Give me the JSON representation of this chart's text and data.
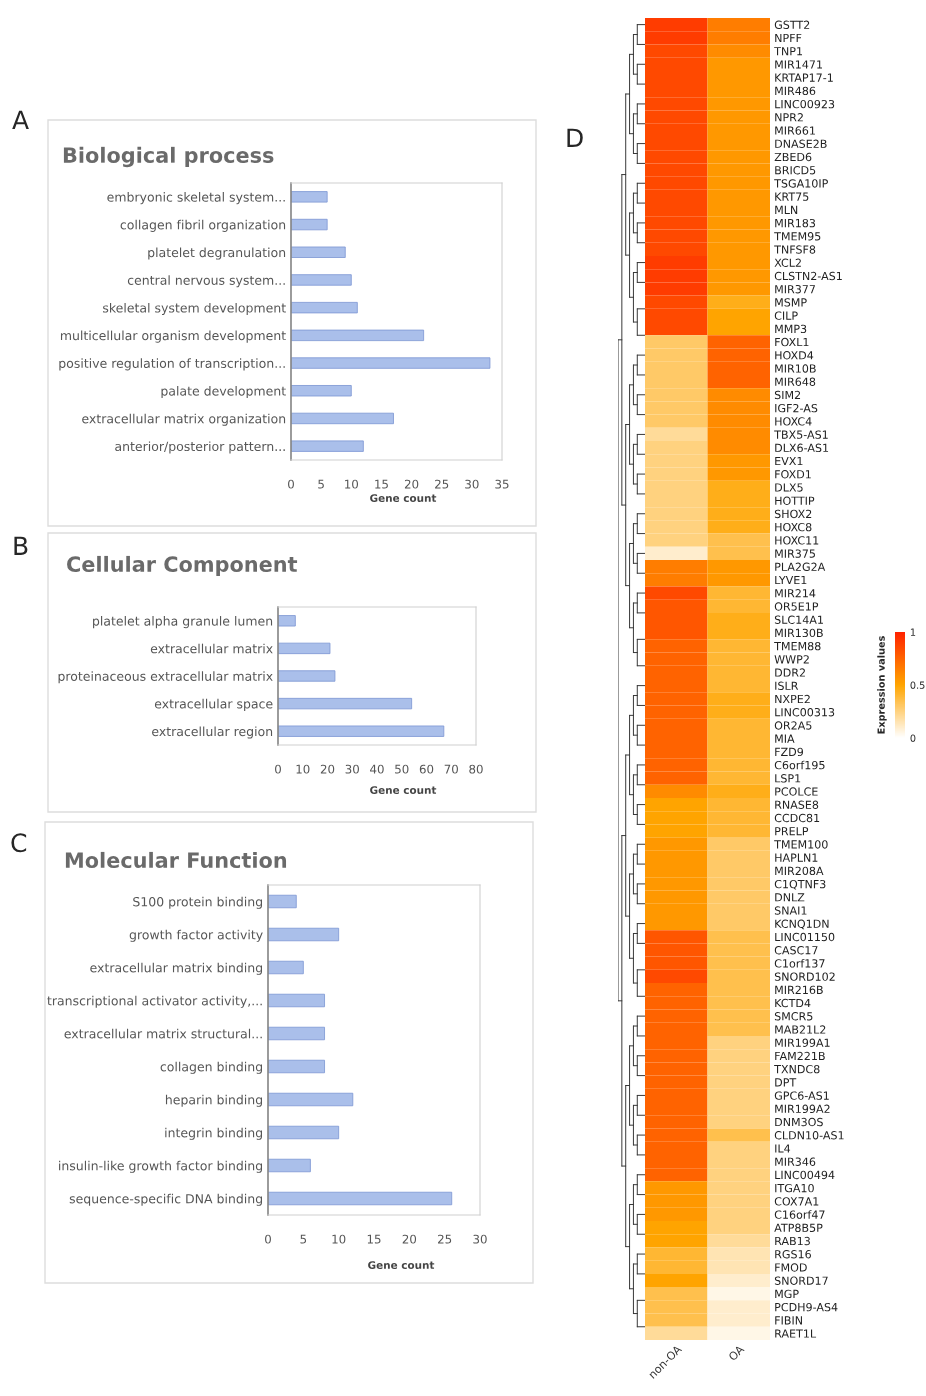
{
  "chart_data": [
    {
      "type": "bar",
      "orientation": "horizontal",
      "title": "Biological process",
      "xlabel": "Gene count",
      "annotations": [
        "A"
      ],
      "color": "#aabfea",
      "categories": [
        "embryonic skeletal system...",
        "collagen fibril organization",
        "platelet degranulation",
        "central nervous system...",
        "skeletal system development",
        "multicellular organism development",
        "positive regulation of transcription...",
        "palate development",
        "extracellular matrix organization",
        "anterior/posterior pattern..."
      ],
      "values": [
        6,
        6,
        9,
        10,
        11,
        22,
        33,
        10,
        17,
        12
      ],
      "xlim": [
        0,
        35
      ],
      "xticks": [
        0,
        5,
        10,
        15,
        20,
        25,
        30,
        35
      ]
    },
    {
      "type": "bar",
      "orientation": "horizontal",
      "title": "Cellular Component",
      "xlabel": "Gene count",
      "annotations": [
        "B"
      ],
      "color": "#aabfea",
      "categories": [
        "platelet alpha granule lumen",
        "extracellular matrix",
        "proteinaceous extracellular matrix",
        "extracellular space",
        "extracellular region"
      ],
      "values": [
        7,
        21,
        23,
        54,
        67
      ],
      "xlim": [
        0,
        80
      ],
      "xticks": [
        0,
        10,
        20,
        30,
        40,
        50,
        60,
        70,
        80
      ]
    },
    {
      "type": "bar",
      "orientation": "horizontal",
      "title": "Molecular Function",
      "xlabel": "Gene count",
      "annotations": [
        "C"
      ],
      "color": "#aabfea",
      "categories": [
        "S100 protein binding",
        "growth factor activity",
        "extracellular matrix binding",
        "transcriptional activator activity,...",
        "extracellular matrix structural...",
        "collagen binding",
        "heparin binding",
        "integrin binding",
        "insulin-like growth factor binding",
        "sequence-specific DNA binding"
      ],
      "values": [
        4,
        10,
        5,
        8,
        8,
        8,
        12,
        10,
        6,
        26
      ],
      "xlim": [
        0,
        30
      ],
      "xticks": [
        0,
        5,
        10,
        15,
        20,
        25,
        30
      ]
    },
    {
      "type": "heatmap",
      "annotations": [
        "D"
      ],
      "clabel": "Expression values",
      "clim": [
        0,
        1
      ],
      "cticks": [
        0,
        0.5,
        1
      ],
      "categories": [
        "non-OA",
        "OA"
      ],
      "y_categories": [
        "GSTT2",
        "NPFF",
        "TNP1",
        "MIR1471",
        "KRTAP17-1",
        "MIR486",
        "LINC00923",
        "NPR2",
        "MIR661",
        "DNASE2B",
        "ZBED6",
        "BRICD5",
        "TSGA10IP",
        "KRT75",
        "MLN",
        "MIR183",
        "TMEM95",
        "TNFSF8",
        "XCL2",
        "CLSTN2-AS1",
        "MIR377",
        "MSMP",
        "CILP",
        "MMP3",
        "FOXL1",
        "HOXD4",
        "MIR10B",
        "MIR648",
        "SIM2",
        "IGF2-AS",
        "HOXC4",
        "TBX5-AS1",
        "DLX6-AS1",
        "EVX1",
        "FOXD1",
        "DLX5",
        "HOTTIP",
        "SHOX2",
        "HOXC8",
        "HOXC11",
        "MIR375",
        "PLA2G2A",
        "LYVE1",
        "MIR214",
        "OR5E1P",
        "SLC14A1",
        "MIR130B",
        "TMEM88",
        "WWP2",
        "DDR2",
        "ISLR",
        "NXPE2",
        "LINC00313",
        "OR2A5",
        "MIA",
        "FZD9",
        "C6orf195",
        "LSP1",
        "PCOLCE",
        "RNASE8",
        "CCDC81",
        "PRELP",
        "TMEM100",
        "HAPLN1",
        "MIR208A",
        "C1QTNF3",
        "DNLZ",
        "SNAI1",
        "KCNQ1DN",
        "LINC01150",
        "CASC17",
        "C1orf137",
        "SNORD102",
        "MIR216B",
        "KCTD4",
        "SMCR5",
        "MAB21L2",
        "MIR199A1",
        "FAM221B",
        "TXNDC8",
        "DPT",
        "GPC6-AS1",
        "MIR199A2",
        "DNM3OS",
        "CLDN10-AS1",
        "IL4",
        "MIR346",
        "LINC00494",
        "ITGA10",
        "COX7A1",
        "C16orf47",
        "ATP8B5P",
        "RAB13",
        "RGS16",
        "FMOD",
        "SNORD17",
        "MGP",
        "PCDH9-AS4",
        "FIBIN",
        "RAET1L"
      ],
      "cells": [
        [
          0.9,
          0.65
        ],
        [
          0.9,
          0.65
        ],
        [
          0.85,
          0.6
        ],
        [
          0.85,
          0.55
        ],
        [
          0.85,
          0.55
        ],
        [
          0.85,
          0.55
        ],
        [
          0.85,
          0.55
        ],
        [
          0.85,
          0.55
        ],
        [
          0.85,
          0.55
        ],
        [
          0.85,
          0.55
        ],
        [
          0.85,
          0.55
        ],
        [
          0.85,
          0.55
        ],
        [
          0.85,
          0.55
        ],
        [
          0.85,
          0.55
        ],
        [
          0.85,
          0.55
        ],
        [
          0.85,
          0.55
        ],
        [
          0.85,
          0.55
        ],
        [
          0.85,
          0.55
        ],
        [
          0.9,
          0.55
        ],
        [
          0.9,
          0.55
        ],
        [
          0.9,
          0.55
        ],
        [
          0.85,
          0.45
        ],
        [
          0.85,
          0.5
        ],
        [
          0.85,
          0.5
        ],
        [
          0.3,
          0.75
        ],
        [
          0.3,
          0.75
        ],
        [
          0.3,
          0.75
        ],
        [
          0.3,
          0.75
        ],
        [
          0.3,
          0.6
        ],
        [
          0.3,
          0.6
        ],
        [
          0.3,
          0.6
        ],
        [
          0.2,
          0.6
        ],
        [
          0.25,
          0.6
        ],
        [
          0.25,
          0.55
        ],
        [
          0.25,
          0.55
        ],
        [
          0.25,
          0.45
        ],
        [
          0.25,
          0.45
        ],
        [
          0.25,
          0.45
        ],
        [
          0.25,
          0.45
        ],
        [
          0.25,
          0.35
        ],
        [
          0.1,
          0.35
        ],
        [
          0.65,
          0.55
        ],
        [
          0.65,
          0.55
        ],
        [
          0.85,
          0.4
        ],
        [
          0.8,
          0.4
        ],
        [
          0.8,
          0.45
        ],
        [
          0.8,
          0.45
        ],
        [
          0.75,
          0.4
        ],
        [
          0.75,
          0.4
        ],
        [
          0.75,
          0.4
        ],
        [
          0.75,
          0.4
        ],
        [
          0.75,
          0.45
        ],
        [
          0.75,
          0.45
        ],
        [
          0.75,
          0.4
        ],
        [
          0.75,
          0.4
        ],
        [
          0.75,
          0.4
        ],
        [
          0.75,
          0.4
        ],
        [
          0.75,
          0.4
        ],
        [
          0.6,
          0.45
        ],
        [
          0.5,
          0.4
        ],
        [
          0.5,
          0.4
        ],
        [
          0.5,
          0.4
        ],
        [
          0.55,
          0.3
        ],
        [
          0.55,
          0.3
        ],
        [
          0.55,
          0.3
        ],
        [
          0.55,
          0.3
        ],
        [
          0.55,
          0.3
        ],
        [
          0.55,
          0.3
        ],
        [
          0.55,
          0.3
        ],
        [
          0.8,
          0.35
        ],
        [
          0.8,
          0.35
        ],
        [
          0.8,
          0.35
        ],
        [
          0.85,
          0.35
        ],
        [
          0.75,
          0.35
        ],
        [
          0.75,
          0.35
        ],
        [
          0.75,
          0.35
        ],
        [
          0.75,
          0.35
        ],
        [
          0.75,
          0.25
        ],
        [
          0.75,
          0.25
        ],
        [
          0.75,
          0.25
        ],
        [
          0.75,
          0.25
        ],
        [
          0.75,
          0.25
        ],
        [
          0.75,
          0.25
        ],
        [
          0.75,
          0.25
        ],
        [
          0.75,
          0.35
        ],
        [
          0.75,
          0.25
        ],
        [
          0.75,
          0.25
        ],
        [
          0.75,
          0.25
        ],
        [
          0.55,
          0.25
        ],
        [
          0.55,
          0.25
        ],
        [
          0.55,
          0.25
        ],
        [
          0.5,
          0.25
        ],
        [
          0.5,
          0.2
        ],
        [
          0.4,
          0.15
        ],
        [
          0.4,
          0.15
        ],
        [
          0.5,
          0.1
        ],
        [
          0.35,
          0.05
        ],
        [
          0.35,
          0.1
        ],
        [
          0.35,
          0.1
        ],
        [
          0.2,
          0.05
        ]
      ]
    }
  ]
}
